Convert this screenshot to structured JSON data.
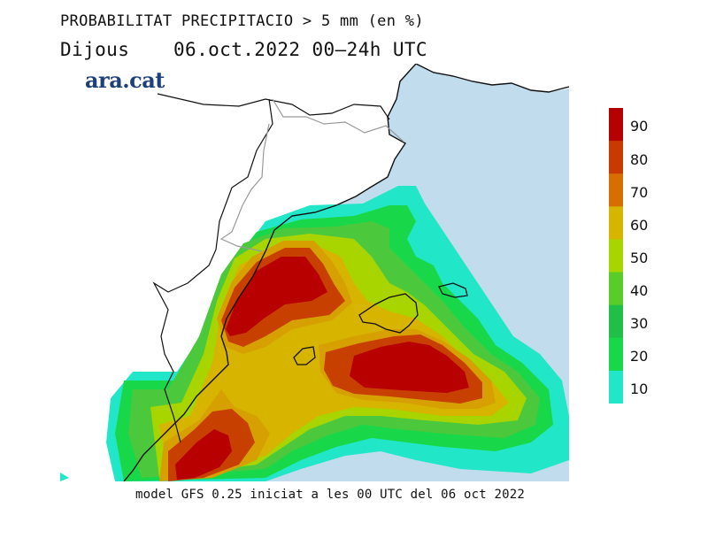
{
  "header": {
    "title": "PROBABILITAT PRECIPITACIO > 5 mm (en %)",
    "day": "Dijous",
    "date_range": "06.oct.2022 00—24h UTC"
  },
  "logo": {
    "text": "ara.cat"
  },
  "footer": {
    "text": "model GFS 0.25 iniciat a les 00 UTC del 06 oct 2022"
  },
  "legend": {
    "labels": [
      "90",
      "80",
      "70",
      "60",
      "50",
      "40",
      "30",
      "20",
      "10"
    ],
    "colors": [
      "#b50000",
      "#c93a00",
      "#d66e00",
      "#d6b400",
      "#a8d400",
      "#58cc28",
      "#20c048",
      "#18d84a",
      "#22e6c8"
    ]
  },
  "map": {
    "sea_color": "#c1dcec",
    "land_color": "#ffffff",
    "prob_colors": {
      "p10": "#22e6c8",
      "p20": "#18d84a",
      "p30": "#4cc83c",
      "p50": "#a8d400",
      "p60": "#d6b400",
      "p70": "#d6a000",
      "p80": "#c84000",
      "p90": "#b80000"
    }
  }
}
